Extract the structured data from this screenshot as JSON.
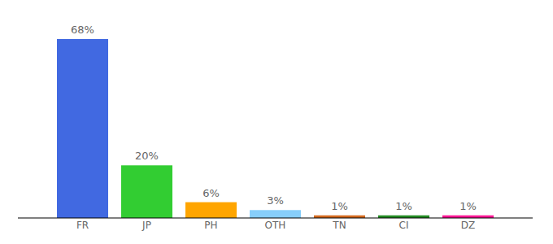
{
  "chart_data": {
    "type": "bar",
    "categories": [
      "FR",
      "JP",
      "PH",
      "OTH",
      "TN",
      "CI",
      "DZ"
    ],
    "values": [
      68,
      20,
      6,
      3,
      1,
      1,
      1
    ],
    "value_labels": [
      "68%",
      "20%",
      "6%",
      "3%",
      "1%",
      "1%",
      "1%"
    ],
    "colors": [
      "#4169e1",
      "#32cd32",
      "#ffa500",
      "#87cefa",
      "#d2691e",
      "#228b22",
      "#ff1493"
    ],
    "ylim": [
      0,
      68
    ],
    "data_labels": true,
    "tick_labels": "x",
    "grid": false
  }
}
